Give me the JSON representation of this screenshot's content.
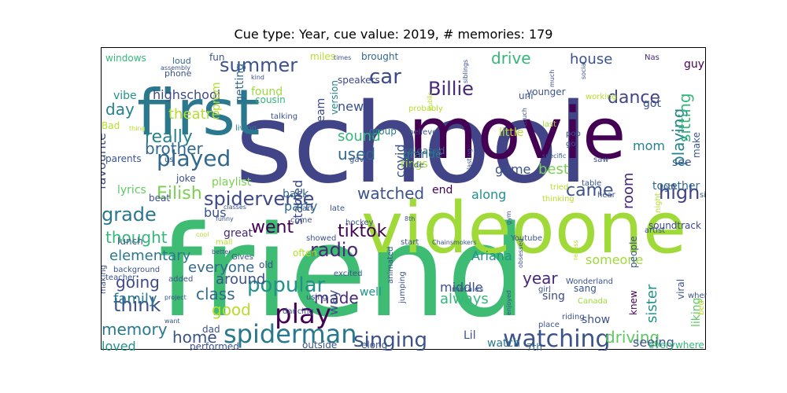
{
  "figure": {
    "title": "Cue type: Year, cue value: 2019, # memories: 179"
  },
  "words": [
    {
      "text": "school",
      "color": "#414487"
    },
    {
      "text": "friend",
      "color": "#3fbc73"
    },
    {
      "text": "movie",
      "color": "#440154"
    },
    {
      "text": "first",
      "color": "#2a788e"
    },
    {
      "text": "videoone",
      "color": "#a0da39"
    },
    {
      "text": "spiderman",
      "color": "#2a788e"
    },
    {
      "text": "watching",
      "color": "#3b528b"
    },
    {
      "text": "played",
      "color": "#31688e"
    },
    {
      "text": "play",
      "color": "#440154"
    },
    {
      "text": "popular",
      "color": "#21918c"
    },
    {
      "text": "singing",
      "color": "#3b528b"
    },
    {
      "text": "Billie",
      "color": "#482878"
    },
    {
      "text": "spiderverse",
      "color": "#3e4989"
    },
    {
      "text": "summer",
      "color": "#3b528b"
    },
    {
      "text": "grade",
      "color": "#2a788e"
    },
    {
      "text": "think",
      "color": "#3b528b"
    },
    {
      "text": "went",
      "color": "#440154"
    },
    {
      "text": "tiktok",
      "color": "#440154"
    },
    {
      "text": "dance",
      "color": "#414487"
    },
    {
      "text": "car",
      "color": "#3e4989"
    },
    {
      "text": "really",
      "color": "#26828e"
    },
    {
      "text": "brother",
      "color": "#31688e"
    },
    {
      "text": "theatre",
      "color": "#b5de2b"
    },
    {
      "text": "driving",
      "color": "#5ec962"
    },
    {
      "text": "playing",
      "color": "#26828e"
    },
    {
      "text": "watched",
      "color": "#3b528b"
    },
    {
      "text": "high",
      "color": "#414487"
    },
    {
      "text": "radio",
      "color": "#482878"
    },
    {
      "text": "memory",
      "color": "#2a788e"
    },
    {
      "text": "going",
      "color": "#3e4989"
    },
    {
      "text": "class",
      "color": "#31688e"
    },
    {
      "text": "made",
      "color": "#482878"
    },
    {
      "text": "home",
      "color": "#3b528b"
    },
    {
      "text": "Eilish",
      "color": "#7ad151"
    },
    {
      "text": "drive",
      "color": "#35b779"
    },
    {
      "text": "house",
      "color": "#3b528b"
    },
    {
      "text": "day",
      "color": "#26828e"
    },
    {
      "text": "used",
      "color": "#31688e"
    },
    {
      "text": "sitting",
      "color": "#35b779"
    },
    {
      "text": "came",
      "color": "#3b528b"
    },
    {
      "text": "year",
      "color": "#482878"
    },
    {
      "text": "thought",
      "color": "#35b779"
    },
    {
      "text": "sound",
      "color": "#35b779"
    },
    {
      "text": "good",
      "color": "#b5de2b"
    },
    {
      "text": "always",
      "color": "#35b779"
    },
    {
      "text": "room",
      "color": "#482878"
    },
    {
      "text": "elementary",
      "color": "#2a788e"
    },
    {
      "text": "everyone",
      "color": "#31688e"
    },
    {
      "text": "around",
      "color": "#3b528b"
    },
    {
      "text": "family",
      "color": "#2a788e"
    },
    {
      "text": "middle",
      "color": "#3b528b"
    },
    {
      "text": "loved",
      "color": "#21918c"
    },
    {
      "text": "started",
      "color": "#3e4989"
    },
    {
      "text": "along",
      "color": "#21918c"
    },
    {
      "text": "Ariana",
      "color": "#21918c"
    },
    {
      "text": "sister",
      "color": "#21918c"
    },
    {
      "text": "seeing",
      "color": "#3b528b"
    },
    {
      "text": "new",
      "color": "#3b528b"
    },
    {
      "text": "covid",
      "color": "#3b528b"
    },
    {
      "text": "favourite",
      "color": "#3e4989"
    },
    {
      "text": "playlist",
      "color": "#7ad151"
    },
    {
      "text": "getting",
      "color": "#31688e"
    },
    {
      "text": "highschool",
      "color": "#3e4989"
    },
    {
      "text": "vibe",
      "color": "#21918c"
    },
    {
      "text": "game",
      "color": "#3b528b"
    },
    {
      "text": "best",
      "color": "#7ad151"
    },
    {
      "text": "mom",
      "color": "#26828e"
    },
    {
      "text": "see",
      "color": "#3b528b"
    },
    {
      "text": "guy",
      "color": "#440154"
    },
    {
      "text": "got",
      "color": "#3b528b"
    },
    {
      "text": "make",
      "color": "#3b528b"
    },
    {
      "text": "little",
      "color": "#b5de2b"
    },
    {
      "text": "grande",
      "color": "#2a788e"
    },
    {
      "text": "rings",
      "color": "#a0da39"
    },
    {
      "text": "party",
      "color": "#31688e"
    },
    {
      "text": "lyrics",
      "color": "#5ec962"
    },
    {
      "text": "back",
      "color": "#31688e"
    },
    {
      "text": "end",
      "color": "#440154"
    },
    {
      "text": "bus",
      "color": "#3b528b"
    },
    {
      "text": "great",
      "color": "#482878"
    },
    {
      "text": "someone",
      "color": "#a0da39"
    },
    {
      "text": "well",
      "color": "#21918c"
    },
    {
      "text": "old",
      "color": "#3b528b"
    },
    {
      "text": "often",
      "color": "#b5de2b"
    },
    {
      "text": "way",
      "color": "#3b528b"
    },
    {
      "text": "Lil",
      "color": "#3b528b"
    },
    {
      "text": "watch",
      "color": "#2a788e"
    },
    {
      "text": "show",
      "color": "#3b528b"
    },
    {
      "text": "sing",
      "color": "#3e4989"
    },
    {
      "text": "sang",
      "color": "#3b528b"
    },
    {
      "text": "liking",
      "color": "#5ec962"
    },
    {
      "text": "knew",
      "color": "#440154"
    },
    {
      "text": "people",
      "color": "#3b528b"
    },
    {
      "text": "viral",
      "color": "#3b528b"
    },
    {
      "text": "everywhere",
      "color": "#35b779"
    },
    {
      "text": "together",
      "color": "#31688e"
    },
    {
      "text": "soundtrack",
      "color": "#3e4989"
    },
    {
      "text": "dad",
      "color": "#3b528b"
    },
    {
      "text": "performed",
      "color": "#3b528b"
    },
    {
      "text": "outside",
      "color": "#3b528b"
    },
    {
      "text": "elong",
      "color": "#3b528b"
    },
    {
      "text": "7th",
      "color": "#31688e"
    },
    {
      "text": "prom",
      "color": "#b5de2b"
    },
    {
      "text": "found",
      "color": "#a0da39"
    },
    {
      "text": "cousin",
      "color": "#35b779"
    },
    {
      "text": "team",
      "color": "#3e4989"
    },
    {
      "text": "version",
      "color": "#26828e"
    },
    {
      "text": "group",
      "color": "#2a788e"
    },
    {
      "text": "speakers",
      "color": "#3e4989"
    },
    {
      "text": "miles",
      "color": "#b5de2b"
    },
    {
      "text": "brought",
      "color": "#31688e"
    },
    {
      "text": "working",
      "color": "#b5de2b"
    },
    {
      "text": "Nas",
      "color": "#482878"
    },
    {
      "text": "last",
      "color": "#a0da39"
    },
    {
      "text": "pop",
      "color": "#3b528b"
    },
    {
      "text": "younger",
      "color": "#3b528b"
    },
    {
      "text": "uni",
      "color": "#3b528b"
    },
    {
      "text": "windows",
      "color": "#35b779"
    },
    {
      "text": "loud",
      "color": "#31688e"
    },
    {
      "text": "fun",
      "color": "#3b528b"
    },
    {
      "text": "phone",
      "color": "#3b528b"
    },
    {
      "text": "Bad",
      "color": "#b5de2b"
    },
    {
      "text": "parents",
      "color": "#3b528b"
    },
    {
      "text": "joke",
      "color": "#3b528b"
    },
    {
      "text": "us",
      "color": "#3b528b"
    },
    {
      "text": "beat",
      "color": "#3b528b"
    },
    {
      "text": "living",
      "color": "#2a788e"
    },
    {
      "text": "talking",
      "color": "#3b528b"
    },
    {
      "text": "probably",
      "color": "#b5de2b"
    },
    {
      "text": "believe",
      "color": "#3b528b"
    },
    {
      "text": "released",
      "color": "#31688e"
    },
    {
      "text": "ride",
      "color": "#3b528b"
    },
    {
      "text": "gave",
      "color": "#3b528b"
    },
    {
      "text": "art",
      "color": "#3b528b"
    },
    {
      "text": "come",
      "color": "#3b528b"
    },
    {
      "text": "late",
      "color": "#3b528b"
    },
    {
      "text": "hockey",
      "color": "#3b528b"
    },
    {
      "text": "showed",
      "color": "#3b528b"
    },
    {
      "text": "start",
      "color": "#3b528b"
    },
    {
      "text": "excited",
      "color": "#3b528b"
    },
    {
      "text": "Gives",
      "color": "#3b528b"
    },
    {
      "text": "mall",
      "color": "#b5de2b"
    },
    {
      "text": "lunch",
      "color": "#3b528b"
    },
    {
      "text": "background",
      "color": "#3b528b"
    },
    {
      "text": "making",
      "color": "#3b528b"
    },
    {
      "text": "teacher",
      "color": "#3b528b"
    },
    {
      "text": "added",
      "color": "#3b528b"
    },
    {
      "text": "using",
      "color": "#3b528b"
    },
    {
      "text": "dancing",
      "color": "#3b528b"
    },
    {
      "text": "jumping",
      "color": "#3b528b"
    },
    {
      "text": "animated",
      "color": "#3b528b"
    },
    {
      "text": "morales",
      "color": "#3b528b"
    },
    {
      "text": "girl",
      "color": "#3b528b"
    },
    {
      "text": "riding",
      "color": "#3b528b"
    },
    {
      "text": "place",
      "color": "#3b528b"
    },
    {
      "text": "Canada",
      "color": "#a0da39"
    },
    {
      "text": "hear",
      "color": "#3b528b"
    },
    {
      "text": "Wonderland",
      "color": "#3b528b"
    },
    {
      "text": "Youtube",
      "color": "#3b528b"
    },
    {
      "text": "thinking",
      "color": "#b5de2b"
    },
    {
      "text": "tried",
      "color": "#b5de2b"
    },
    {
      "text": "table",
      "color": "#3b528b"
    },
    {
      "text": "saw",
      "color": "#3b528b"
    },
    {
      "text": "go",
      "color": "#3b528b"
    },
    {
      "text": "took",
      "color": "#3b528b"
    },
    {
      "text": "night",
      "color": "#b5de2b"
    },
    {
      "text": "artist",
      "color": "#3b528b"
    },
    {
      "text": "singer",
      "color": "#3b528b"
    },
    {
      "text": "whenever",
      "color": "#3b528b"
    },
    {
      "text": "bed",
      "color": "#b5de2b"
    },
    {
      "text": "want",
      "color": "#3b528b"
    },
    {
      "text": "cool",
      "color": "#b5de2b"
    },
    {
      "text": "funny",
      "color": "#3b528b"
    },
    {
      "text": "8th",
      "color": "#3b528b"
    },
    {
      "text": "Chainsmokers",
      "color": "#3b528b"
    },
    {
      "text": "obsessed",
      "color": "#3b528b"
    },
    {
      "text": "enjoyed",
      "color": "#3b528b"
    },
    {
      "text": "recess",
      "color": "#b5de2b"
    },
    {
      "text": "project",
      "color": "#3b528b"
    },
    {
      "text": "thing",
      "color": "#b5de2b"
    },
    {
      "text": "assembly",
      "color": "#3b528b"
    },
    {
      "text": "kind",
      "color": "#3b528b"
    },
    {
      "text": "times",
      "color": "#3b528b"
    },
    {
      "text": "much",
      "color": "#3b528b"
    },
    {
      "text": "social",
      "color": "#3b528b"
    },
    {
      "text": "couch",
      "color": "#3b528b"
    },
    {
      "text": "gym",
      "color": "#3b528b"
    },
    {
      "text": "blasting",
      "color": "#3b528b"
    },
    {
      "text": "siblings",
      "color": "#3b528b"
    },
    {
      "text": "public",
      "color": "#b5de2b"
    },
    {
      "text": "classes",
      "color": "#3b528b"
    },
    {
      "text": "better",
      "color": "#3b528b"
    },
    {
      "text": "specific",
      "color": "#3b528b"
    },
    {
      "text": "dinner",
      "color": "#b5de2b"
    },
    {
      "text": "bar",
      "color": "#3b528b"
    },
    {
      "text": "weather",
      "color": "#b5de2b"
    },
    {
      "text": "test",
      "color": "#3b528b"
    }
  ]
}
